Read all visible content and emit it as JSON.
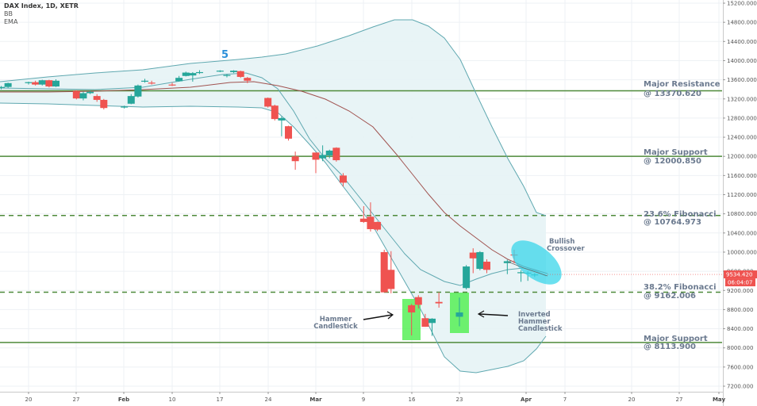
{
  "legend": {
    "title": "DAX Index, 1D, XETR",
    "indicators": [
      "BB",
      "EMA"
    ]
  },
  "price_axis": {
    "ticks": [
      "15200.000",
      "14800.000",
      "14400.000",
      "14000.000",
      "13600.000",
      "13200.000",
      "12800.000",
      "12400.000",
      "12000.000",
      "11600.000",
      "11200.000",
      "10800.000",
      "10400.000",
      "10000.000",
      "9600.000",
      "9200.000",
      "8800.000",
      "8400.000",
      "8000.000",
      "7600.000",
      "7200.000"
    ],
    "last_price": "9534.420",
    "countdown": "06:04:07",
    "last_price_color": "#ef5350"
  },
  "time_axis": {
    "ticks": [
      {
        "label": "20",
        "bold": false
      },
      {
        "label": "27",
        "bold": false
      },
      {
        "label": "Feb",
        "bold": true
      },
      {
        "label": "10",
        "bold": false
      },
      {
        "label": "17",
        "bold": false
      },
      {
        "label": "24",
        "bold": false
      },
      {
        "label": "Mar",
        "bold": true
      },
      {
        "label": "9",
        "bold": false
      },
      {
        "label": "16",
        "bold": false
      },
      {
        "label": "23",
        "bold": false
      },
      {
        "label": "Apr",
        "bold": true
      },
      {
        "label": "7",
        "bold": false
      },
      {
        "label": "20",
        "bold": false
      },
      {
        "label": "27",
        "bold": false
      },
      {
        "label": "May",
        "bold": true
      }
    ]
  },
  "levels": [
    {
      "name": "Major Resistance",
      "value": "@ 13370.620",
      "price": 13370.62,
      "style": "solid"
    },
    {
      "name": "Major Support",
      "value": "@ 12000.850",
      "price": 12000.85,
      "style": "solid"
    },
    {
      "name": "23.6% Fibonacci",
      "value": "@ 10764.973",
      "price": 10764.973,
      "style": "dashed"
    },
    {
      "name": "38.2% Fibonacci",
      "value": "@ 9162.006",
      "price": 9162.006,
      "style": "dashed"
    },
    {
      "name": "Major Support",
      "value": "@ 8113.900",
      "price": 8113.9,
      "style": "solid"
    }
  ],
  "annotations": {
    "wave_label": "5",
    "hammer": [
      "Hammer",
      "Candlestick"
    ],
    "inverted_hammer": [
      "Inverted",
      "Hammer",
      "Candlestick"
    ],
    "bullish_crossover": [
      "Bullish",
      "Crossover"
    ]
  },
  "colors": {
    "up": "#26a69a",
    "down": "#ef5350",
    "bb_line": "#5fa8b0",
    "bb_fill": "#e6f3f5",
    "ema": "#a0524f",
    "level_line": "#4e8a3a",
    "highlight_green": "#4cef4c",
    "highlight_cyan": "#3ad6ea",
    "annotation_text": "#6b7a8f"
  },
  "chart_data": {
    "type": "candlestick",
    "title": "DAX Index, 1D, XETR",
    "ylabel": "Price",
    "ylim": [
      7200,
      15200
    ],
    "x_tick_labels": [
      "20",
      "27",
      "Feb",
      "10",
      "17",
      "24",
      "Mar",
      "9",
      "16",
      "23",
      "Apr",
      "7",
      "20",
      "27",
      "May"
    ],
    "indicators": [
      "Bollinger Bands",
      "EMA"
    ],
    "candles": [
      {
        "date": "Jan 14",
        "open": 13430,
        "high": 13460,
        "low": 13390,
        "close": 13420
      },
      {
        "date": "Jan 15",
        "open": 13420,
        "high": 13460,
        "low": 13370,
        "close": 13430
      },
      {
        "date": "Jan 16",
        "open": 13430,
        "high": 13470,
        "low": 13400,
        "close": 13450
      },
      {
        "date": "Jan 17",
        "open": 13450,
        "high": 13540,
        "low": 13430,
        "close": 13530
      },
      {
        "date": "Jan 20",
        "open": 13530,
        "high": 13560,
        "low": 13500,
        "close": 13550
      },
      {
        "date": "Jan 21",
        "open": 13550,
        "high": 13580,
        "low": 13480,
        "close": 13500
      },
      {
        "date": "Jan 22",
        "open": 13500,
        "high": 13600,
        "low": 13480,
        "close": 13590
      },
      {
        "date": "Jan 23",
        "open": 13590,
        "high": 13600,
        "low": 13440,
        "close": 13460
      },
      {
        "date": "Jan 24",
        "open": 13460,
        "high": 13610,
        "low": 13450,
        "close": 13580
      },
      {
        "date": "Jan 27",
        "open": 13370,
        "high": 13380,
        "low": 13190,
        "close": 13210
      },
      {
        "date": "Jan 28",
        "open": 13210,
        "high": 13350,
        "low": 13170,
        "close": 13320
      },
      {
        "date": "Jan 29",
        "open": 13320,
        "high": 13370,
        "low": 13300,
        "close": 13350
      },
      {
        "date": "Jan 30",
        "open": 13260,
        "high": 13300,
        "low": 13140,
        "close": 13180
      },
      {
        "date": "Jan 31",
        "open": 13180,
        "high": 13200,
        "low": 12980,
        "close": 13010
      },
      {
        "date": "Feb 3",
        "open": 13020,
        "high": 13060,
        "low": 13000,
        "close": 13040
      },
      {
        "date": "Feb 4",
        "open": 13100,
        "high": 13300,
        "low": 13090,
        "close": 13260
      },
      {
        "date": "Feb 5",
        "open": 13250,
        "high": 13500,
        "low": 13230,
        "close": 13480
      },
      {
        "date": "Feb 6",
        "open": 13560,
        "high": 13620,
        "low": 13540,
        "close": 13580
      },
      {
        "date": "Feb 7",
        "open": 13540,
        "high": 13580,
        "low": 13500,
        "close": 13520
      },
      {
        "date": "Feb 10",
        "open": 13500,
        "high": 13540,
        "low": 13470,
        "close": 13490
      },
      {
        "date": "Feb 11",
        "open": 13570,
        "high": 13680,
        "low": 13560,
        "close": 13640
      },
      {
        "date": "Feb 12",
        "open": 13680,
        "high": 13770,
        "low": 13670,
        "close": 13750
      },
      {
        "date": "Feb 13",
        "open": 13690,
        "high": 13760,
        "low": 13560,
        "close": 13740
      },
      {
        "date": "Feb 14",
        "open": 13750,
        "high": 13800,
        "low": 13720,
        "close": 13760
      },
      {
        "date": "Feb 17",
        "open": 13780,
        "high": 13800,
        "low": 13760,
        "close": 13790
      },
      {
        "date": "Feb 18",
        "open": 13680,
        "high": 13720,
        "low": 13650,
        "close": 13700
      },
      {
        "date": "Feb 19",
        "open": 13760,
        "high": 13800,
        "low": 13740,
        "close": 13790
      },
      {
        "date": "Feb 20",
        "open": 13780,
        "high": 13790,
        "low": 13640,
        "close": 13660
      },
      {
        "date": "Feb 21",
        "open": 13640,
        "high": 13660,
        "low": 13530,
        "close": 13580
      },
      {
        "date": "Feb 24",
        "open": 13220,
        "high": 13230,
        "low": 13020,
        "close": 13040
      },
      {
        "date": "Feb 25",
        "open": 13060,
        "high": 13080,
        "low": 12750,
        "close": 12780
      },
      {
        "date": "Feb 26",
        "open": 12750,
        "high": 12830,
        "low": 12420,
        "close": 12800
      },
      {
        "date": "Feb 27",
        "open": 12630,
        "high": 12640,
        "low": 12330,
        "close": 12370
      },
      {
        "date": "Feb 28",
        "open": 12000,
        "high": 12100,
        "low": 11720,
        "close": 11900
      },
      {
        "date": "Mar 2",
        "open": 12080,
        "high": 12080,
        "low": 11650,
        "close": 11930
      },
      {
        "date": "Mar 3",
        "open": 11960,
        "high": 12230,
        "low": 11900,
        "close": 12030
      },
      {
        "date": "Mar 4",
        "open": 12020,
        "high": 12140,
        "low": 11960,
        "close": 12120
      },
      {
        "date": "Mar 5",
        "open": 12180,
        "high": 12190,
        "low": 11890,
        "close": 11920
      },
      {
        "date": "Mar 6",
        "open": 11600,
        "high": 11650,
        "low": 11370,
        "close": 11450
      },
      {
        "date": "Mar 9",
        "open": 10700,
        "high": 10960,
        "low": 10610,
        "close": 10630
      },
      {
        "date": "Mar 10",
        "open": 10740,
        "high": 11040,
        "low": 10430,
        "close": 10480
      },
      {
        "date": "Mar 11",
        "open": 10630,
        "high": 10640,
        "low": 10440,
        "close": 10470
      },
      {
        "date": "Mar 12",
        "open": 10000,
        "high": 10050,
        "low": 9160,
        "close": 9160
      },
      {
        "date": "Mar 13",
        "open": 9630,
        "high": 10020,
        "low": 9140,
        "close": 9230
      },
      {
        "date": "Mar 16",
        "open": 8890,
        "high": 8920,
        "low": 8260,
        "close": 8740
      },
      {
        "date": "Mar 17",
        "open": 9060,
        "high": 9100,
        "low": 8820,
        "close": 8900
      },
      {
        "date": "Mar 18",
        "open": 8620,
        "high": 8710,
        "low": 8440,
        "close": 8440
      },
      {
        "date": "Mar 19",
        "open": 8520,
        "high": 8620,
        "low": 8250,
        "close": 8610
      },
      {
        "date": "Mar 20",
        "open": 8960,
        "high": 9160,
        "low": 8840,
        "close": 8930
      },
      {
        "date": "Mar 23",
        "open": 8650,
        "high": 9050,
        "low": 8450,
        "close": 8740
      },
      {
        "date": "Mar 24",
        "open": 9250,
        "high": 9730,
        "low": 9220,
        "close": 9700
      },
      {
        "date": "Mar 25",
        "open": 9990,
        "high": 10080,
        "low": 9560,
        "close": 9870
      },
      {
        "date": "Mar 26",
        "open": 9650,
        "high": 10020,
        "low": 9620,
        "close": 10000
      },
      {
        "date": "Mar 27",
        "open": 9800,
        "high": 9850,
        "low": 9560,
        "close": 9630
      },
      {
        "date": "Mar 30",
        "open": 9770,
        "high": 9840,
        "low": 9540,
        "close": 9810
      },
      {
        "date": "Mar 31",
        "open": 9950,
        "high": 10050,
        "low": 9770,
        "close": 9940
      },
      {
        "date": "Apr 1",
        "open": 9560,
        "high": 9620,
        "low": 9380,
        "close": 9580
      },
      {
        "date": "Apr 2",
        "open": 9560,
        "high": 9600,
        "low": 9400,
        "close": 9570
      },
      {
        "date": "Apr 3",
        "open": 9530,
        "high": 9560,
        "low": 9480,
        "close": 9534.42
      }
    ],
    "horizontal_levels": [
      {
        "label": "Major Resistance",
        "value": 13370.62
      },
      {
        "label": "Major Support",
        "value": 12000.85
      },
      {
        "label": "23.6% Fibonacci",
        "value": 10764.973
      },
      {
        "label": "38.2% Fibonacci",
        "value": 9162.006
      },
      {
        "label": "Major Support",
        "value": 8113.9
      }
    ],
    "annotations": [
      "5",
      "Hammer Candlestick",
      "Inverted Hammer Candlestick",
      "Bullish Crossover"
    ],
    "last_price": 9534.42,
    "grid": true
  }
}
